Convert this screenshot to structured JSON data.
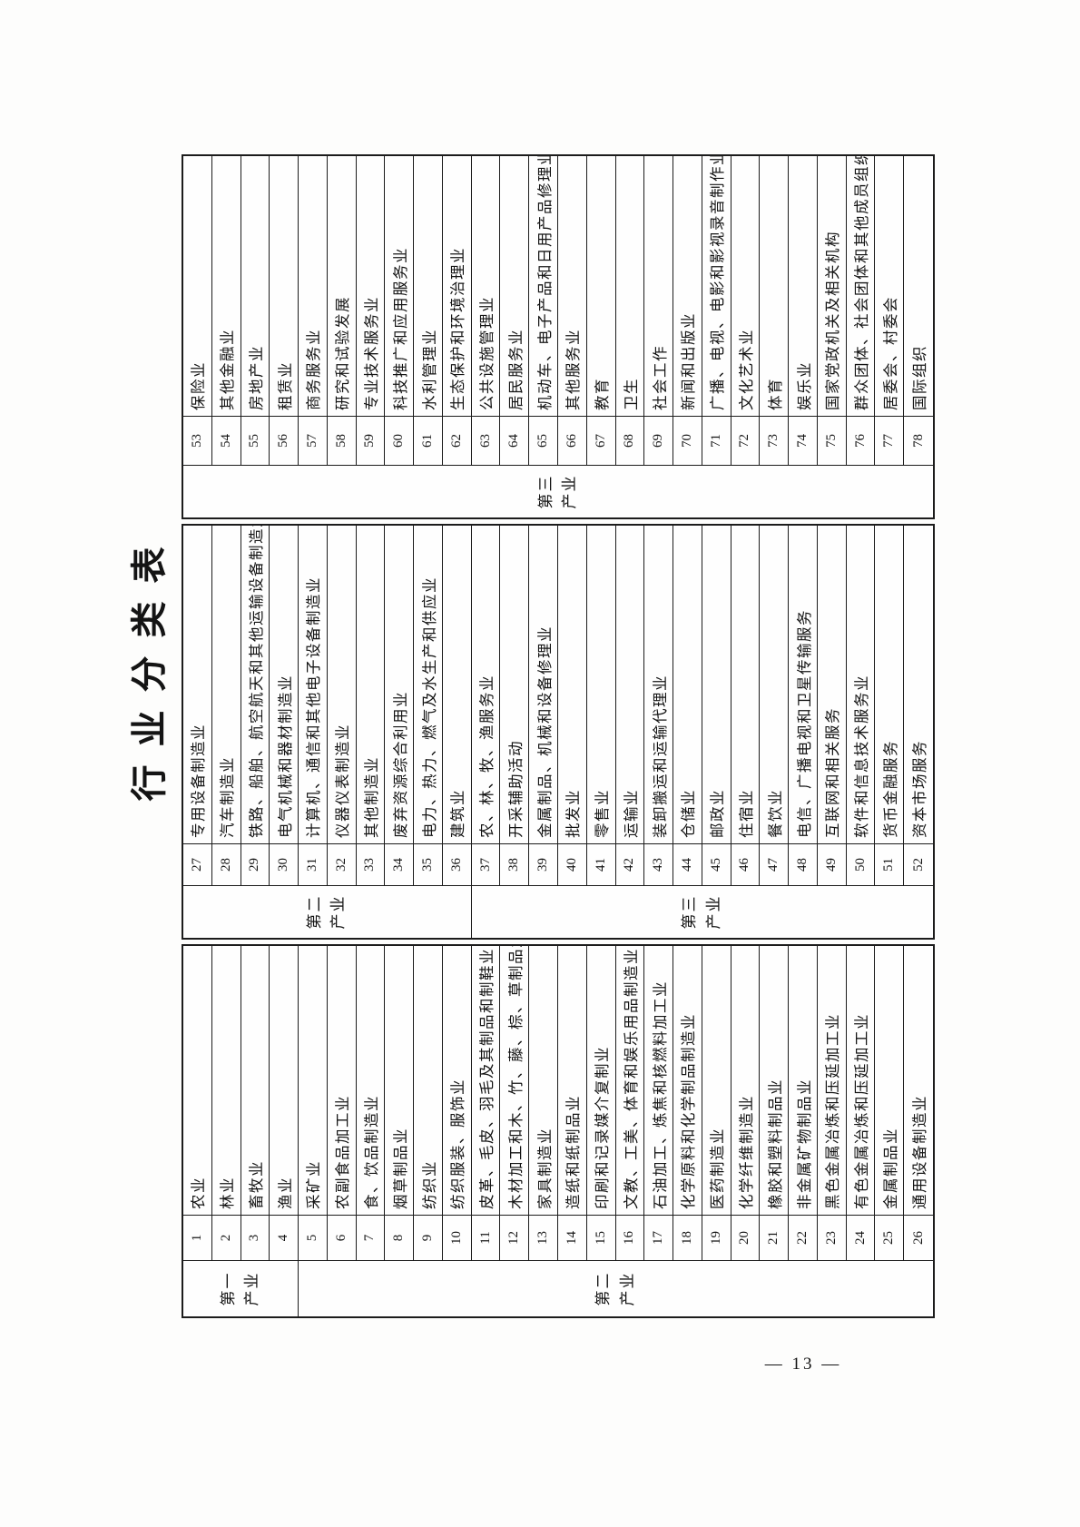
{
  "page": {
    "number_label": "— 13 —"
  },
  "table": {
    "title": "行业分类表",
    "sections": [
      {
        "groups": [
          {
            "label": "第一产业",
            "span": 4
          },
          {
            "label": "第二产业",
            "span": 22
          }
        ],
        "rows": [
          {
            "num": "1",
            "name": "农业"
          },
          {
            "num": "2",
            "name": "林业"
          },
          {
            "num": "3",
            "name": "畜牧业"
          },
          {
            "num": "4",
            "name": "渔业"
          },
          {
            "num": "5",
            "name": "采矿业"
          },
          {
            "num": "6",
            "name": "农副食品加工业"
          },
          {
            "num": "7",
            "name": "食、饮品制造业"
          },
          {
            "num": "8",
            "name": "烟草制品业"
          },
          {
            "num": "9",
            "name": "纺织业"
          },
          {
            "num": "10",
            "name": "纺织服装、服饰业"
          },
          {
            "num": "11",
            "name": "皮革、毛皮、羽毛及其制品和制鞋业"
          },
          {
            "num": "12",
            "name": "木材加工和木、竹、藤、棕、草制品业"
          },
          {
            "num": "13",
            "name": "家具制造业"
          },
          {
            "num": "14",
            "name": "造纸和纸制品业"
          },
          {
            "num": "15",
            "name": "印刷和记录媒介复制业"
          },
          {
            "num": "16",
            "name": "文教、工美、体育和娱乐用品制造业"
          },
          {
            "num": "17",
            "name": "石油加工、炼焦和核燃料加工业"
          },
          {
            "num": "18",
            "name": "化学原料和化学制品制造业"
          },
          {
            "num": "19",
            "name": "医药制造业"
          },
          {
            "num": "20",
            "name": "化学纤维制造业"
          },
          {
            "num": "21",
            "name": "橡胶和塑料制品业"
          },
          {
            "num": "22",
            "name": "非金属矿物制品业"
          },
          {
            "num": "23",
            "name": "黑色金属冶炼和压延加工业"
          },
          {
            "num": "24",
            "name": "有色金属冶炼和压延加工业"
          },
          {
            "num": "25",
            "name": "金属制品业"
          },
          {
            "num": "26",
            "name": "通用设备制造业"
          }
        ]
      },
      {
        "groups": [
          {
            "label": "第二产业",
            "span": 10
          },
          {
            "label": "第三产业",
            "span": 16
          }
        ],
        "rows": [
          {
            "num": "27",
            "name": "专用设备制造业"
          },
          {
            "num": "28",
            "name": "汽车制造业"
          },
          {
            "num": "29",
            "name": "铁路、船舶、航空航天和其他运输设备制造业"
          },
          {
            "num": "30",
            "name": "电气机械和器材制造业"
          },
          {
            "num": "31",
            "name": "计算机、通信和其他电子设备制造业"
          },
          {
            "num": "32",
            "name": "仪器仪表制造业"
          },
          {
            "num": "33",
            "name": "其他制造业"
          },
          {
            "num": "34",
            "name": "废弃资源综合利用业"
          },
          {
            "num": "35",
            "name": "电力、热力、燃气及水生产和供应业"
          },
          {
            "num": "36",
            "name": "建筑业"
          },
          {
            "num": "37",
            "name": "农、林、牧、渔服务业"
          },
          {
            "num": "38",
            "name": "开采辅助活动"
          },
          {
            "num": "39",
            "name": "金属制品、机械和设备修理业"
          },
          {
            "num": "40",
            "name": "批发业"
          },
          {
            "num": "41",
            "name": "零售业"
          },
          {
            "num": "42",
            "name": "运输业"
          },
          {
            "num": "43",
            "name": "装卸搬运和运输代理业"
          },
          {
            "num": "44",
            "name": "仓储业"
          },
          {
            "num": "45",
            "name": "邮政业"
          },
          {
            "num": "46",
            "name": "住宿业"
          },
          {
            "num": "47",
            "name": "餐饮业"
          },
          {
            "num": "48",
            "name": "电信、广播电视和卫星传输服务"
          },
          {
            "num": "49",
            "name": "互联网和相关服务"
          },
          {
            "num": "50",
            "name": "软件和信息技术服务业"
          },
          {
            "num": "51",
            "name": "货币金融服务"
          },
          {
            "num": "52",
            "name": "资本市场服务"
          }
        ]
      },
      {
        "groups": [
          {
            "label": "第三产业",
            "span": 26
          }
        ],
        "rows": [
          {
            "num": "53",
            "name": "保险业"
          },
          {
            "num": "54",
            "name": "其他金融业"
          },
          {
            "num": "55",
            "name": "房地产业"
          },
          {
            "num": "56",
            "name": "租赁业"
          },
          {
            "num": "57",
            "name": "商务服务业"
          },
          {
            "num": "58",
            "name": "研究和试验发展"
          },
          {
            "num": "59",
            "name": "专业技术服务业"
          },
          {
            "num": "60",
            "name": "科技推广和应用服务业"
          },
          {
            "num": "61",
            "name": "水利管理业"
          },
          {
            "num": "62",
            "name": "生态保护和环境治理业"
          },
          {
            "num": "63",
            "name": "公共设施管理业"
          },
          {
            "num": "64",
            "name": "居民服务业"
          },
          {
            "num": "65",
            "name": "机动车、电子产品和日用产品修理业"
          },
          {
            "num": "66",
            "name": "其他服务业"
          },
          {
            "num": "67",
            "name": "教育"
          },
          {
            "num": "68",
            "name": "卫生"
          },
          {
            "num": "69",
            "name": "社会工作"
          },
          {
            "num": "70",
            "name": "新闻和出版业"
          },
          {
            "num": "71",
            "name": "广播、电视、电影和影视录音制作业"
          },
          {
            "num": "72",
            "name": "文化艺术业"
          },
          {
            "num": "73",
            "name": "体育"
          },
          {
            "num": "74",
            "name": "娱乐业"
          },
          {
            "num": "75",
            "name": "国家党政机关及相关机构"
          },
          {
            "num": "76",
            "name": "群众团体、社会团体和其他成员组织"
          },
          {
            "num": "77",
            "name": "居委会、村委会"
          },
          {
            "num": "78",
            "name": "国际组织"
          }
        ]
      }
    ]
  }
}
